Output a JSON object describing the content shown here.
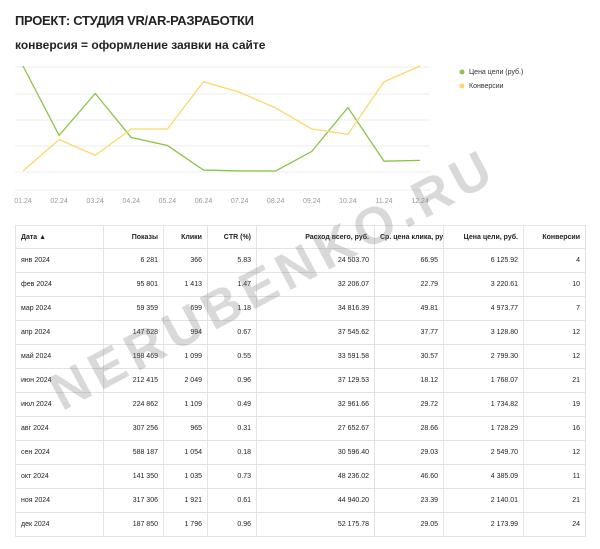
{
  "header": {
    "title": "ПРОЕКТ: СТУДИЯ VR/AR-РАЗРАБОТКИ",
    "subtitle": "конверсия = оформление заявки на сайте"
  },
  "chart_data": {
    "type": "line",
    "categories": [
      "01.24",
      "02.24",
      "03.24",
      "04.24",
      "05.24",
      "06.24",
      "07.24",
      "08.24",
      "09.24",
      "10.24",
      "11.24",
      "12.24"
    ],
    "series": [
      {
        "name": "Цена цели (руб.)",
        "color": "#8bc34a",
        "values": [
          6125.92,
          3220.61,
          4973.77,
          3128.8,
          2799.3,
          1768.07,
          1734.82,
          1728.29,
          2549.7,
          4385.09,
          2140.01,
          2173.99
        ]
      },
      {
        "name": "Конверсии",
        "color": "#fbd86b",
        "values": [
          4,
          10,
          7,
          12,
          12,
          21,
          19,
          16,
          12,
          11,
          21,
          24
        ]
      }
    ],
    "legend": "right"
  },
  "table": {
    "columns": [
      "Дата ▲",
      "Показы",
      "Клики",
      "CTR (%)",
      "Расход всего, руб.",
      "Ср. цена клика, руб.",
      "Цена цели, руб.",
      "Конверсии"
    ],
    "rows": [
      [
        "янв 2024",
        "6 281",
        "366",
        "5.83",
        "24 503.70",
        "66.95",
        "6 125.92",
        "4"
      ],
      [
        "фев 2024",
        "95 801",
        "1 413",
        "1.47",
        "32 206.07",
        "22.79",
        "3 220.61",
        "10"
      ],
      [
        "мар 2024",
        "59 359",
        "699",
        "1.18",
        "34 816.39",
        "49.81",
        "4 973.77",
        "7"
      ],
      [
        "апр 2024",
        "147 628",
        "994",
        "0.67",
        "37 545.62",
        "37.77",
        "3 128.80",
        "12"
      ],
      [
        "май 2024",
        "198 469",
        "1 099",
        "0.55",
        "33 591.58",
        "30.57",
        "2 799.30",
        "12"
      ],
      [
        "июн 2024",
        "212 415",
        "2 049",
        "0.96",
        "37 129.53",
        "18.12",
        "1 768.07",
        "21"
      ],
      [
        "июл 2024",
        "224 862",
        "1 109",
        "0.49",
        "32 961.66",
        "29.72",
        "1 734.82",
        "19"
      ],
      [
        "авг 2024",
        "307 256",
        "965",
        "0.31",
        "27 652.67",
        "28.66",
        "1 728.29",
        "16"
      ],
      [
        "сен 2024",
        "588 187",
        "1 054",
        "0.18",
        "30 596.40",
        "29.03",
        "2 549.70",
        "12"
      ],
      [
        "окт 2024",
        "141 350",
        "1 035",
        "0.73",
        "48 236.02",
        "46.60",
        "4 385.09",
        "11"
      ],
      [
        "ноя 2024",
        "317 306",
        "1 921",
        "0.61",
        "44 940.20",
        "23.39",
        "2 140.01",
        "21"
      ],
      [
        "дек 2024",
        "187 850",
        "1 796",
        "0.96",
        "52 175.78",
        "29.05",
        "2 173.99",
        "24"
      ]
    ]
  },
  "watermark": "NERUBENKO.RU"
}
